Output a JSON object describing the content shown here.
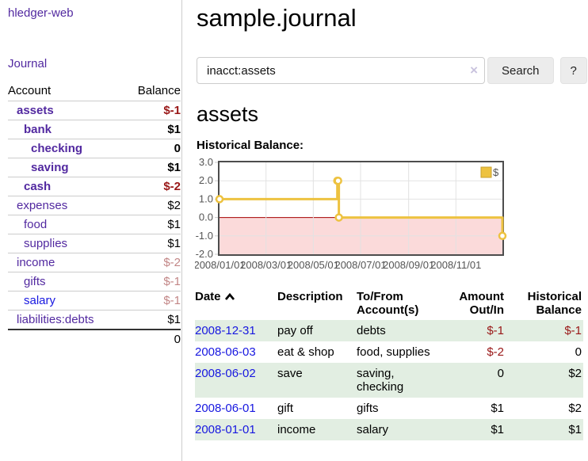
{
  "sidebar": {
    "app_title": "hledger-web",
    "nav": {
      "journal_label": "Journal"
    },
    "accounts_table": {
      "headers": {
        "account": "Account",
        "balance": "Balance"
      },
      "rows": [
        {
          "name": "assets",
          "balance": "$-1",
          "depth": 0,
          "bold": true,
          "balance_style": "negative-strong"
        },
        {
          "name": "bank",
          "balance": "$1",
          "depth": 1,
          "bold": true,
          "balance_style": "normal"
        },
        {
          "name": "checking",
          "balance": "0",
          "depth": 2,
          "bold": true,
          "balance_style": "normal"
        },
        {
          "name": "saving",
          "balance": "$1",
          "depth": 2,
          "bold": true,
          "balance_style": "normal"
        },
        {
          "name": "cash",
          "balance": "$-2",
          "depth": 1,
          "bold": true,
          "balance_style": "negative-strong"
        },
        {
          "name": "expenses",
          "balance": "$2",
          "depth": 0,
          "bold": false,
          "balance_style": "normal"
        },
        {
          "name": "food",
          "balance": "$1",
          "depth": 1,
          "bold": false,
          "balance_style": "normal"
        },
        {
          "name": "supplies",
          "balance": "$1",
          "depth": 1,
          "bold": false,
          "balance_style": "normal"
        },
        {
          "name": "income",
          "balance": "$-2",
          "depth": 0,
          "bold": false,
          "balance_style": "negative-soft"
        },
        {
          "name": "gifts",
          "balance": "$-1",
          "depth": 1,
          "bold": false,
          "balance_style": "negative-soft"
        },
        {
          "name": "salary",
          "balance": "$-1",
          "depth": 1,
          "bold": false,
          "balance_style": "negative-soft",
          "link_color": "blue"
        },
        {
          "name": "liabilities:debts",
          "balance": "$1",
          "depth": 0,
          "bold": false,
          "balance_style": "normal"
        }
      ],
      "total": "0"
    }
  },
  "header": {
    "title": "sample.journal"
  },
  "search": {
    "query": "inacct:assets",
    "clear_icon": "×",
    "search_button": "Search",
    "help_button": "?"
  },
  "account_page": {
    "title": "assets",
    "chart_label": "Historical Balance:"
  },
  "chart_data": {
    "type": "line",
    "step": true,
    "title": "Historical Balance:",
    "series": [
      {
        "name": "$",
        "color": "#edc240",
        "points": [
          [
            "2008-01-01",
            1
          ],
          [
            "2008-06-01",
            2
          ],
          [
            "2008-06-02",
            2
          ],
          [
            "2008-06-03",
            0
          ],
          [
            "2008-12-31",
            -1
          ]
        ]
      }
    ],
    "x_range": [
      "2008-01-01",
      "2008-12-31"
    ],
    "x_ticks": [
      "2008/01/01",
      "2008/03/01",
      "2008/05/01",
      "2008/07/01",
      "2008/09/01",
      "2008/11/01"
    ],
    "ylim": [
      -2.0,
      3.0
    ],
    "y_ticks": [
      3.0,
      2.0,
      1.0,
      0.0,
      -1.0,
      -2.0
    ],
    "legend": {
      "label": "$",
      "position": "top-right"
    },
    "grid": true,
    "colors": {
      "zero_line": "#a40000",
      "negative_fill": "#fbdada",
      "grid_line": "#e2e2e2",
      "border": "#4d4d4d",
      "marker_fill": "#ffffff",
      "legend_box_border": "#c9a02e"
    }
  },
  "register_table": {
    "headers": {
      "date": "Date",
      "description": "Description",
      "tofrom": "To/From Account(s)",
      "amount": "Amount Out/In",
      "balance": "Historical Balance"
    },
    "rows": [
      {
        "date": "2008-12-31",
        "description": "pay off",
        "accounts": "debts",
        "amount": "$-1",
        "balance": "$-1"
      },
      {
        "date": "2008-06-03",
        "description": "eat & shop",
        "accounts": "food, supplies",
        "amount": "$-2",
        "balance": "0"
      },
      {
        "date": "2008-06-02",
        "description": "save",
        "accounts": "saving, checking",
        "amount": "0",
        "balance": "$2"
      },
      {
        "date": "2008-06-01",
        "description": "gift",
        "accounts": "gifts",
        "amount": "$1",
        "balance": "$2"
      },
      {
        "date": "2008-01-01",
        "description": "income",
        "accounts": "salary",
        "amount": "$1",
        "balance": "$1"
      }
    ]
  }
}
